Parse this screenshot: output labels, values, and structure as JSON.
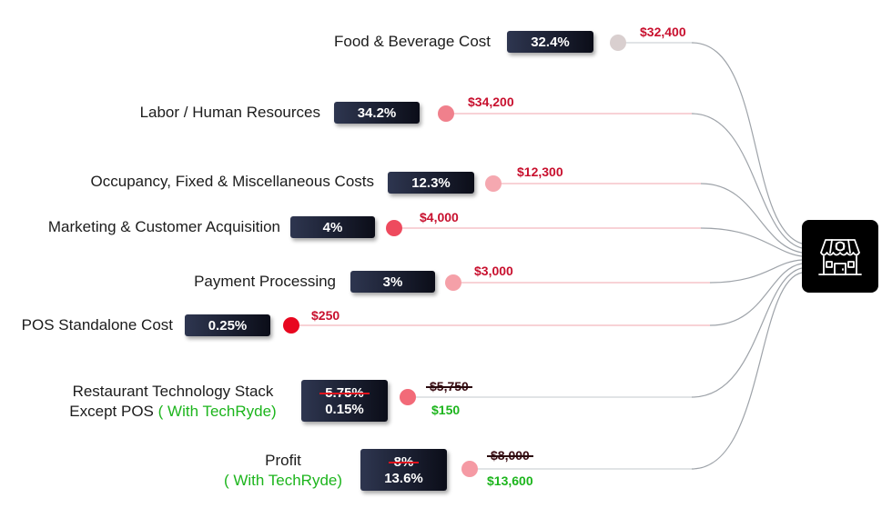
{
  "rows": [
    {
      "label": "Food & Beverage Cost",
      "pct": "32.4%",
      "amount": "$32,400",
      "dot_color": "#d9cfcf"
    },
    {
      "label": "Labor / Human Resources",
      "pct": "34.2%",
      "amount": "$34,200",
      "dot_color": "#f0808c"
    },
    {
      "label": "Occupancy, Fixed & Miscellaneous Costs",
      "pct": "12.3%",
      "amount": "$12,300",
      "dot_color": "#f5a8b0"
    },
    {
      "label": "Marketing & Customer Acquisition",
      "pct": "4%",
      "amount": "$4,000",
      "dot_color": "#ee4a5e"
    },
    {
      "label": "Payment Processing",
      "pct": "3%",
      "amount": "$3,000",
      "dot_color": "#f5a0a8"
    },
    {
      "label": "POS Standalone Cost",
      "pct": "0.25%",
      "amount": "$250",
      "dot_color": "#e8071f"
    },
    {
      "label_line1": "Restaurant Technology Stack",
      "label_line2": "Except POS",
      "label_suffix": "( With TechRyde)",
      "pct_old": "5.75%",
      "pct_new": "0.15%",
      "amount_old": "$5,750",
      "amount_new": "$150",
      "dot_color": "#f26a78"
    },
    {
      "label_line1": "Profit",
      "label_suffix": "( With TechRyde)",
      "pct_old": "8%",
      "pct_new": "13.6%",
      "amount_old": "$8,000",
      "amount_new": "$13,600",
      "dot_color": "#f59aa4"
    }
  ],
  "hub": {
    "icon": "restaurant-store-icon"
  }
}
